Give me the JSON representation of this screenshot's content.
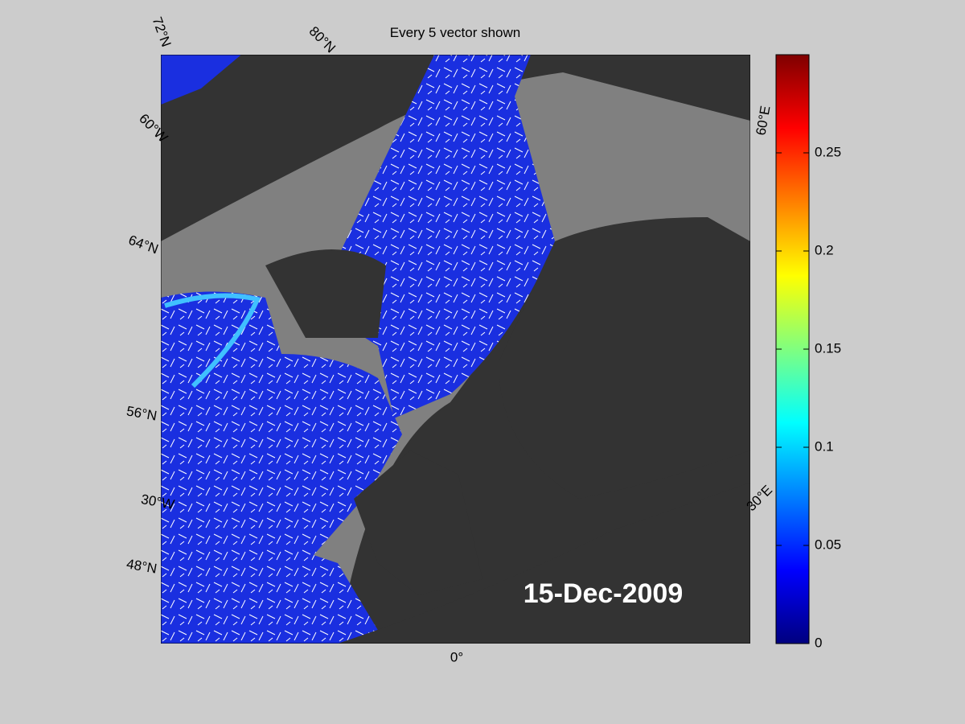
{
  "title": "Every 5 vector shown",
  "date_label": "15-Dec-2009",
  "map_labels": [
    "72°N",
    "80°N",
    "60°W",
    "64°N",
    "56°N",
    "30°W",
    "48°N",
    "0°",
    "30°E",
    "60°E"
  ],
  "colorbar": {
    "lim": [
      0,
      0.3
    ],
    "ticks": [
      0,
      0.05,
      0.1,
      0.15,
      0.2,
      0.25
    ]
  }
}
